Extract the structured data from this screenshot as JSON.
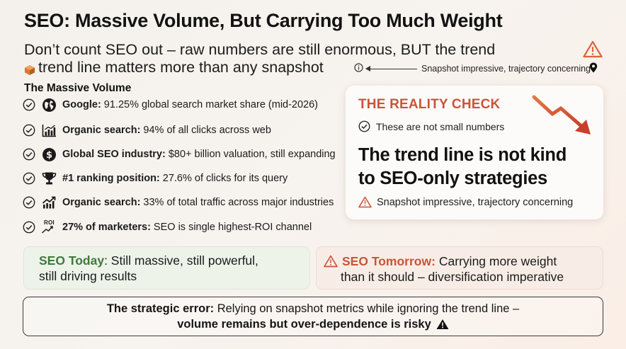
{
  "header": {
    "title": "SEO: Massive Volume, But Carrying Too Much Weight",
    "subtitle_line1": "Don’t count SEO out – raw numbers are still enormous, BUT the trend",
    "subtitle_line2": "trend line matters more than any snapshot",
    "annotation": "Snapshot impressive, trajectory concerning"
  },
  "volume": {
    "heading": "The Massive Volume",
    "items": [
      {
        "icon": "globe-icon",
        "bold": "Google:",
        "text": "91.25% global search market share (mid-2026)"
      },
      {
        "icon": "bar-chart-icon",
        "bold": "Organic search:",
        "text": "94% of all clicks across web"
      },
      {
        "icon": "dollar-icon",
        "bold": "Global SEO industry:",
        "text": "$80+ billion valuation, still expanding"
      },
      {
        "icon": "trophy-icon",
        "bold": "#1 ranking position:",
        "text": "27.6% of clicks for its query"
      },
      {
        "icon": "trend-up-icon",
        "bold": "Organic search:",
        "text": "33% of total traffic across major industries"
      },
      {
        "icon": "roi-icon",
        "icon_text": "ROI",
        "bold": "27% of marketers:",
        "text": "SEO is single highest-ROI channel"
      }
    ]
  },
  "reality": {
    "title": "THE REALITY CHECK",
    "line": "These are not small numbers",
    "big_line1": "The trend line is not kind",
    "big_line2": "to SEO-only strategies",
    "footer": "Snapshot impressive, trajectory concerning"
  },
  "today": {
    "label": "SEO Today",
    "colon": ":",
    "text_line1": " Still massive, still powerful,",
    "text_line2": "still driving results"
  },
  "tomorrow": {
    "label": "SEO Tomorrow:",
    "text_line1": "Carrying more weight",
    "text_line2": "than it should – diversification imperative"
  },
  "error": {
    "label": "The strategic error:",
    "text_line1": " Relying on snapshot metrics while ignoring the trend line –",
    "text_line2": "volume remains but over-dependence is risky"
  },
  "colors": {
    "accent_red": "#c8553a",
    "accent_green": "#3f7a3b",
    "today_bg": "#eef3ea",
    "tomorrow_bg": "#f8ede6"
  }
}
